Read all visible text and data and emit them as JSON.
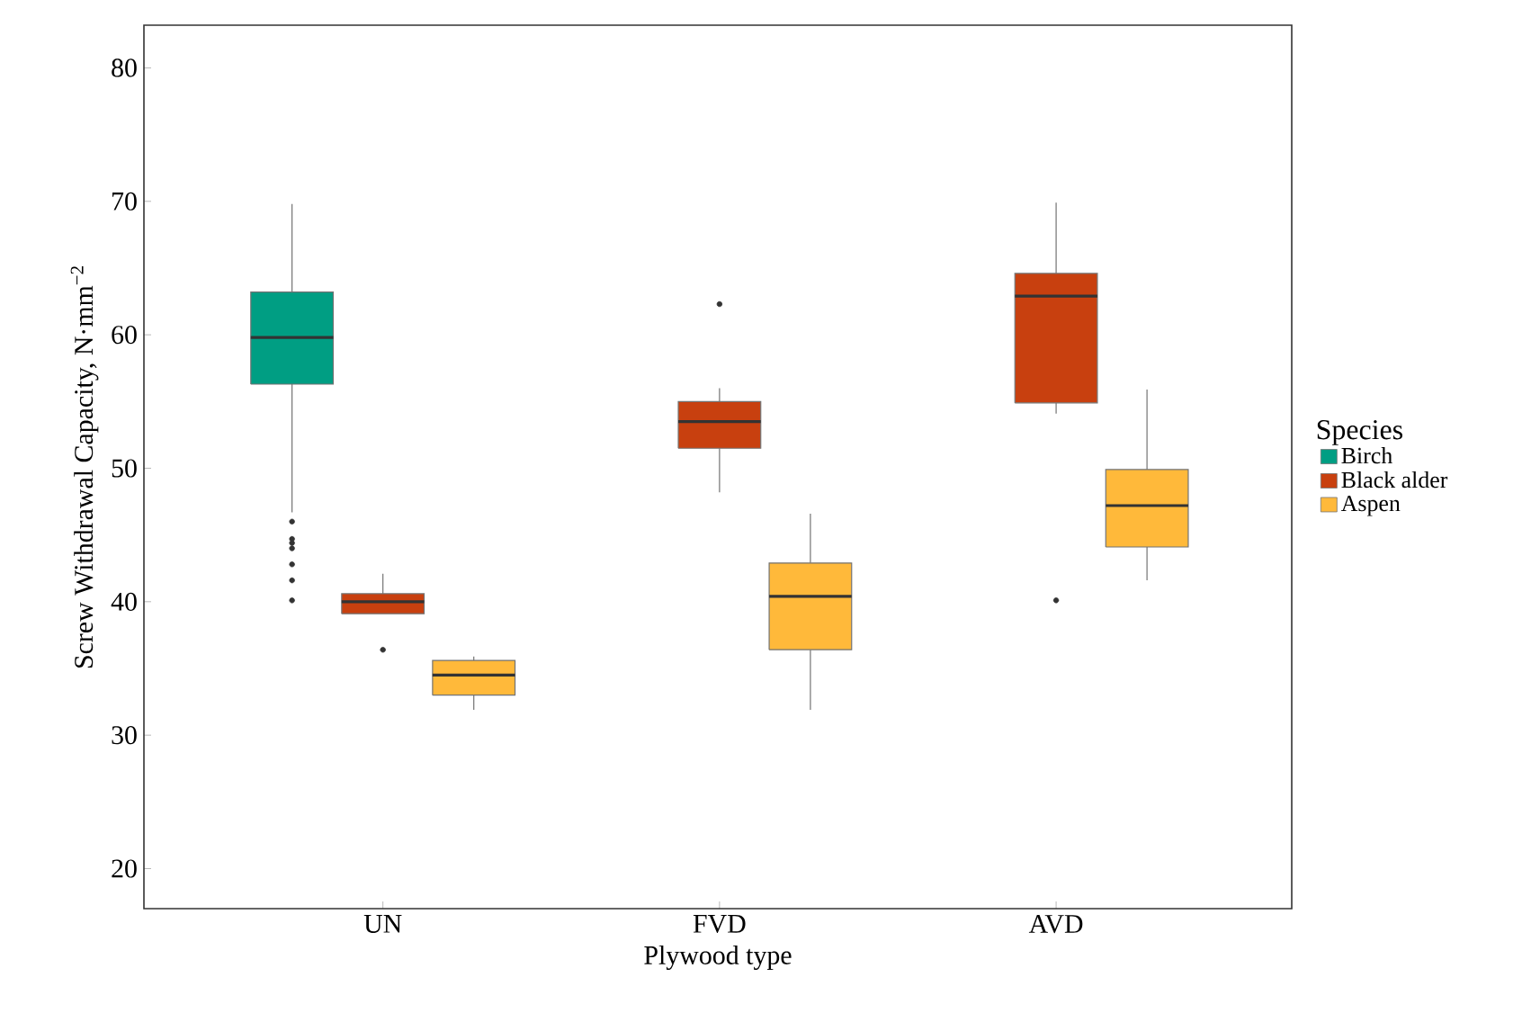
{
  "chart_data": {
    "type": "box",
    "xlabel": "Plywood type",
    "ylabel": "Screw Withdrawal Capacity, N·mm$^{−2}$",
    "legend_title": "Species",
    "categories": [
      "UN",
      "FVD",
      "AVD"
    ],
    "ylim": [
      17,
      83.2
    ],
    "yticks": [
      20,
      30,
      40,
      50,
      60,
      70,
      80
    ],
    "grid": false,
    "legend": "right",
    "series": [
      {
        "name": "Birch",
        "color": "#009e83",
        "boxes": [
          {
            "low": 46.7,
            "q1": 56.3,
            "median": 59.8,
            "q3": 63.2,
            "high": 69.8,
            "outliers": [
              46.0,
              44.7,
              44.4,
              44.0,
              42.8,
              41.6,
              40.1
            ]
          },
          null,
          null
        ]
      },
      {
        "name": "Black alder",
        "color": "#c8400f",
        "boxes": [
          {
            "low": 39.1,
            "q1": 39.1,
            "median": 40.0,
            "q3": 40.6,
            "high": 42.1,
            "outliers": [
              36.4
            ]
          },
          {
            "low": 48.2,
            "q1": 51.5,
            "median": 53.5,
            "q3": 55.0,
            "high": 56.0,
            "outliers": [
              62.3
            ]
          },
          {
            "low": 54.1,
            "q1": 54.9,
            "median": 62.9,
            "q3": 64.6,
            "high": 69.9,
            "outliers": [
              40.1
            ]
          }
        ]
      },
      {
        "name": "Aspen",
        "color": "#ffb93a",
        "boxes": [
          {
            "low": 31.9,
            "q1": 33.0,
            "median": 34.5,
            "q3": 35.6,
            "high": 35.9
          },
          {
            "low": 31.9,
            "q1": 36.4,
            "median": 40.4,
            "q3": 42.9,
            "high": 46.6
          },
          {
            "low": 41.6,
            "q1": 44.1,
            "median": 47.2,
            "q3": 49.9,
            "high": 55.9
          }
        ]
      }
    ]
  }
}
